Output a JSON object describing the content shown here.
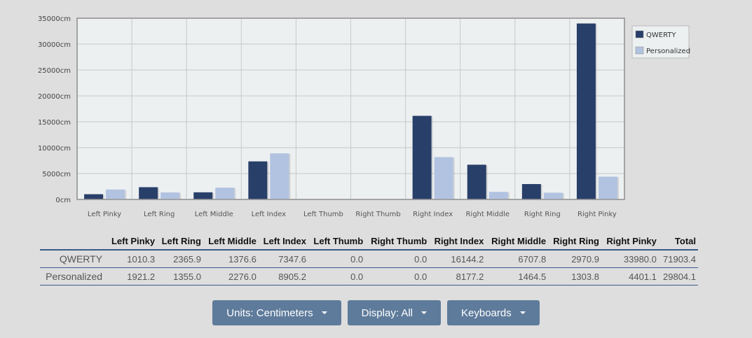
{
  "chart_data": {
    "type": "bar",
    "categories": [
      "Left Pinky",
      "Left Ring",
      "Left Middle",
      "Left Index",
      "Left Thumb",
      "Right Thumb",
      "Right Index",
      "Right Middle",
      "Right Ring",
      "Right Pinky"
    ],
    "series": [
      {
        "name": "QWERTY",
        "values": [
          1010.3,
          2365.9,
          1376.6,
          7347.6,
          0.0,
          0.0,
          16144.2,
          6707.8,
          2970.9,
          33980.0
        ]
      },
      {
        "name": "Personalized",
        "values": [
          1921.2,
          1355.0,
          2276.0,
          8905.2,
          0.0,
          0.0,
          8177.2,
          1464.5,
          1303.8,
          4401.1
        ]
      }
    ],
    "ylim": [
      0,
      35000
    ],
    "yticks": [
      0,
      5000,
      10000,
      15000,
      20000,
      25000,
      30000,
      35000
    ],
    "tick_unit": "cm",
    "grid": true,
    "legend": "top-right",
    "colors": {
      "QWERTY": "#283f69",
      "Personalized": "#b2c3e1"
    }
  },
  "table": {
    "headers": [
      "",
      "Left Pinky",
      "Left Ring",
      "Left Middle",
      "Left Index",
      "Left Thumb",
      "Right Thumb",
      "Right Index",
      "Right Middle",
      "Right Ring",
      "Right Pinky",
      "Total"
    ],
    "rows": [
      {
        "name": "QWERTY",
        "values": [
          "1010.3",
          "2365.9",
          "1376.6",
          "7347.6",
          "0.0",
          "0.0",
          "16144.2",
          "6707.8",
          "2970.9",
          "33980.0",
          "71903.4"
        ]
      },
      {
        "name": "Personalized",
        "values": [
          "1921.2",
          "1355.0",
          "2276.0",
          "8905.2",
          "0.0",
          "0.0",
          "8177.2",
          "1464.5",
          "1303.8",
          "4401.1",
          "29804.1"
        ]
      }
    ]
  },
  "controls": {
    "units_label": "Units: Centimeters",
    "display_label": "Display: All",
    "keyboards_label": "Keyboards"
  }
}
